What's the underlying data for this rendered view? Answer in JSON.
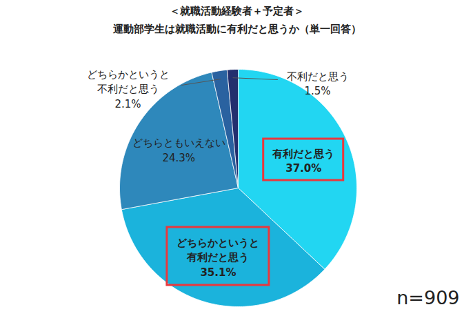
{
  "chart_data": {
    "type": "pie",
    "title": "＜就職活動経験者＋予定者＞",
    "subtitle": "運動部学生は就職活動に有利だと思うか（単一回答）",
    "categories": [
      "有利だと思う",
      "どちらかというと有利だと思う",
      "どちらともいえない",
      "どちらかというと不利だと思う",
      "不利だと思う"
    ],
    "values": [
      37,
      35.1,
      24.3,
      2.1,
      1.5
    ],
    "value_labels": [
      "37.0%",
      "35.1%",
      "24.3%",
      "2.1%",
      "1.5%"
    ],
    "colors": [
      "#22d6f2",
      "#1bb3dc",
      "#2e88bb",
      "#2a62a0",
      "#232f6e"
    ],
    "data_labels": true,
    "annotations": [
      "n=909"
    ]
  }
}
